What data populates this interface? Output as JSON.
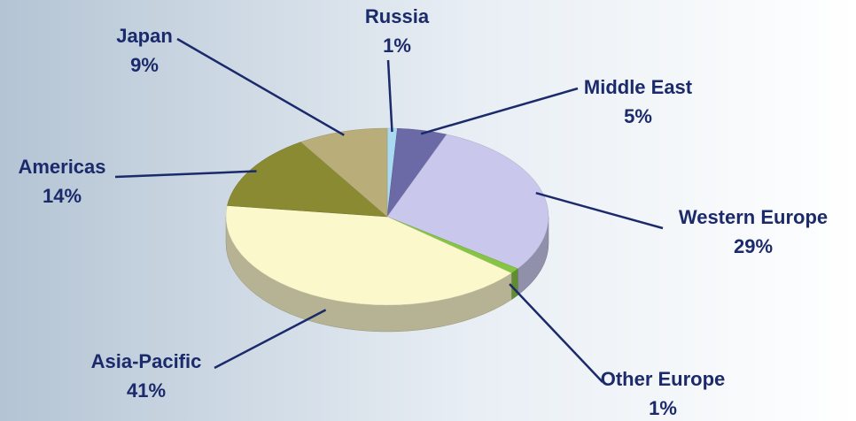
{
  "chart_data": {
    "type": "pie",
    "categories": [
      "Russia",
      "Middle East",
      "Western Europe",
      "Other Europe",
      "Asia-Pacific",
      "Americas",
      "Japan"
    ],
    "values": [
      1,
      5,
      29,
      1,
      41,
      14,
      9
    ],
    "value_labels": [
      "1%",
      "5%",
      "29%",
      "1%",
      "41%",
      "14%",
      "9%"
    ],
    "colors": [
      "#a9daf2",
      "#6b6aa6",
      "#c9c8ec",
      "#86c443",
      "#fbf8cc",
      "#8a8a32",
      "#b9ae7a"
    ]
  }
}
